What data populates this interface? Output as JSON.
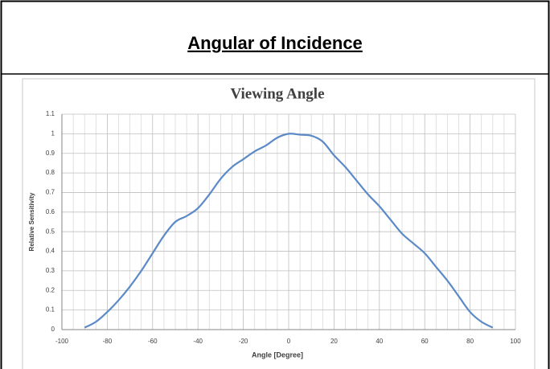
{
  "heading": "Angular of Incidence",
  "chart_data": {
    "type": "line",
    "title": "Viewing Angle",
    "x_label": "Angle [Degree]",
    "y_label": "Relative Sensitivity",
    "x": [
      -90,
      -85,
      -80,
      -75,
      -70,
      -65,
      -60,
      -55,
      -50,
      -45,
      -40,
      -35,
      -30,
      -25,
      -20,
      -15,
      -10,
      -5,
      0,
      5,
      10,
      15,
      20,
      25,
      30,
      35,
      40,
      45,
      50,
      55,
      60,
      65,
      70,
      75,
      80,
      85,
      90
    ],
    "series": [
      {
        "color": "#5b8ac6",
        "values": [
          0.01,
          0.04,
          0.09,
          0.15,
          0.22,
          0.3,
          0.39,
          0.48,
          0.55,
          0.58,
          0.62,
          0.69,
          0.77,
          0.83,
          0.87,
          0.91,
          0.94,
          0.98,
          1.0,
          0.995,
          0.99,
          0.96,
          0.89,
          0.83,
          0.76,
          0.69,
          0.63,
          0.56,
          0.49,
          0.44,
          0.39,
          0.32,
          0.25,
          0.17,
          0.09,
          0.04,
          0.01
        ]
      }
    ],
    "xlim": [
      -100,
      100
    ],
    "xticks": [
      -100,
      -80,
      -60,
      -40,
      -20,
      0,
      20,
      40,
      60,
      80,
      100
    ],
    "ylim": [
      0,
      1.1
    ],
    "yticks": [
      0,
      0.1,
      0.2,
      0.3,
      0.4,
      0.5,
      0.6,
      0.7,
      0.8,
      0.9,
      1,
      1.1
    ],
    "grid": true
  }
}
